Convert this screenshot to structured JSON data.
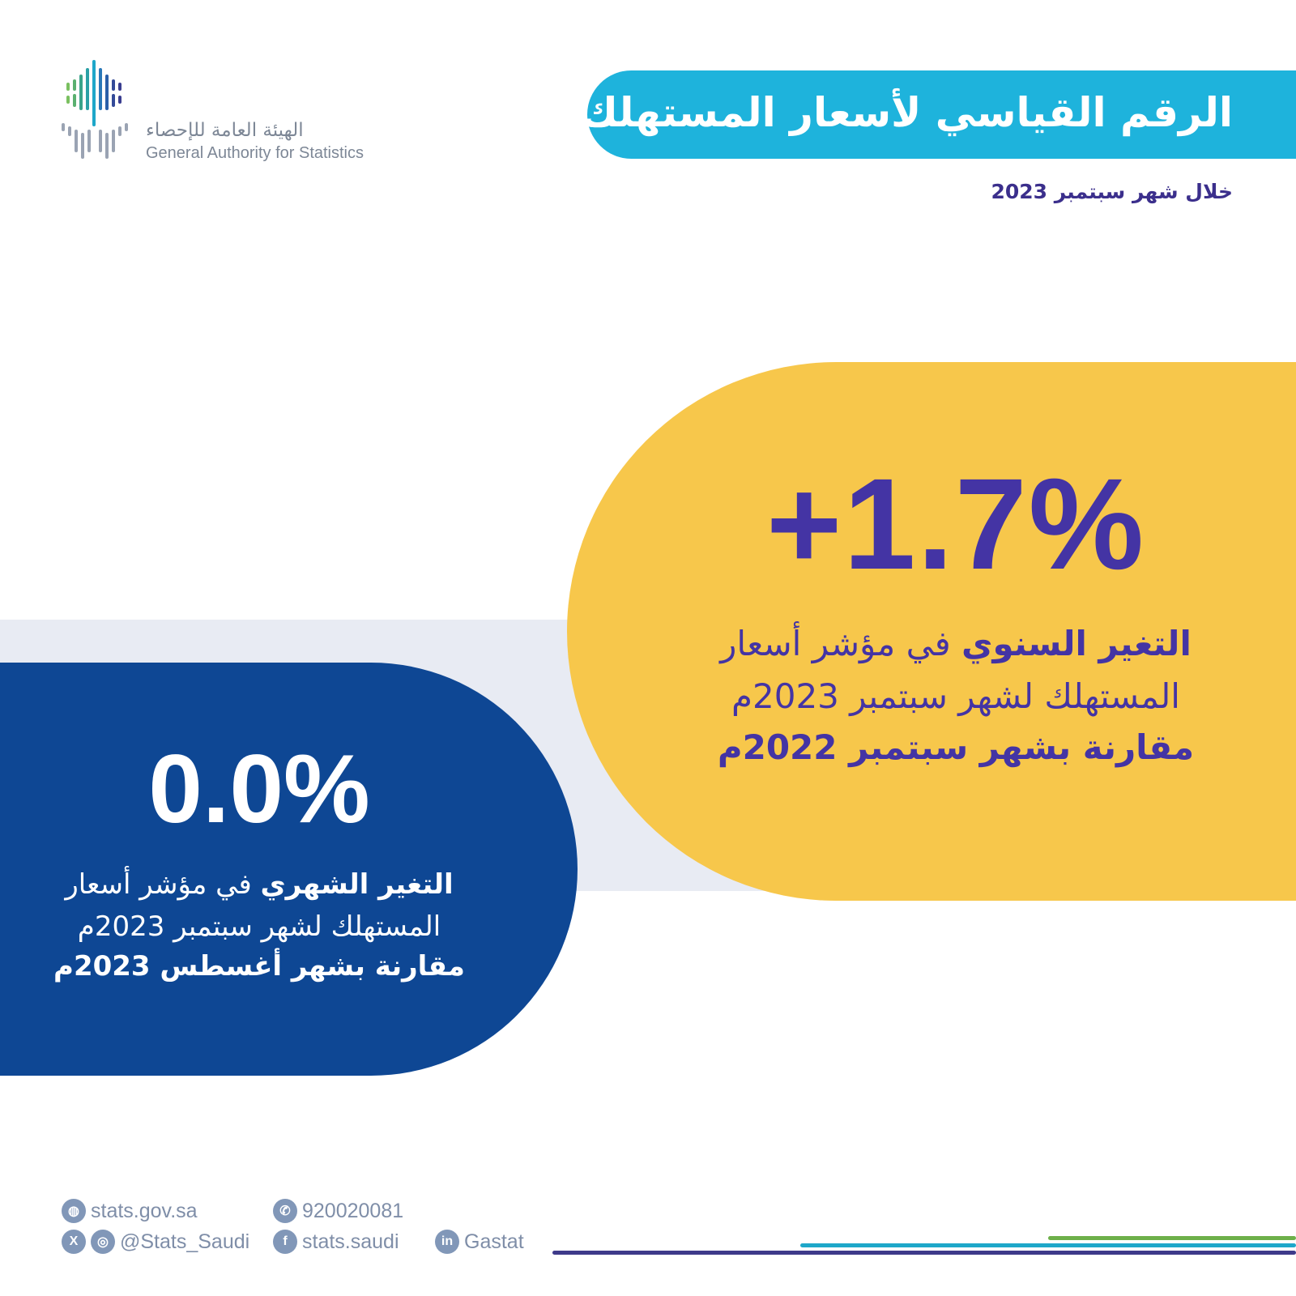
{
  "org": {
    "name_ar": "الهيئة العامة للإحصاء",
    "name_en": "General Authority for Statistics"
  },
  "header": {
    "title": "الرقم القياسي لأسعار المستهلك",
    "subtitle": "خلال شهر سبتمبر 2023"
  },
  "yearly": {
    "value": "+1.7%",
    "label_bold": "التغير السنوي",
    "label_rest": " في مؤشر أسعار",
    "line2": "المستهلك لشهر سبتمبر 2023م",
    "line3": "مقارنة بشهر سبتمبر 2022م"
  },
  "monthly": {
    "value": "0.0%",
    "label_bold": "التغير الشهري",
    "label_rest": " في مؤشر أسعار",
    "line2": "المستهلك لشهر سبتمبر 2023م",
    "line3": "مقارنة بشهر أغسطس 2023م"
  },
  "footer": {
    "website": "stats.gov.sa",
    "phone": "920020081",
    "social_handle": "@Stats_Saudi",
    "facebook": "stats.saudi",
    "linkedin": "Gastat"
  },
  "colors": {
    "title_bg": "#1eb3dc",
    "yellow": "#f7c74b",
    "blue": "#0e4794",
    "purple": "#4434a4",
    "band": "#e8ebf3"
  }
}
